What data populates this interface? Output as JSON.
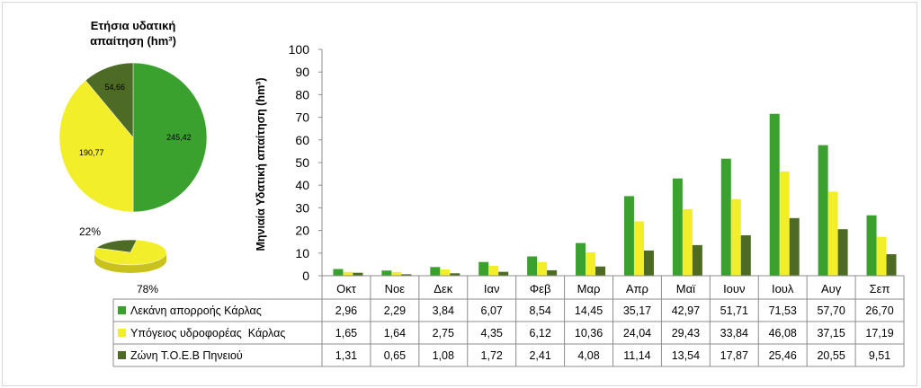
{
  "pie": {
    "title_line1": "Ετήσια υδατική",
    "title_line2": "απαίτηση (hm³)",
    "values": [
      245.42,
      190.77,
      54.66
    ],
    "labels": [
      "245,42",
      "190,77",
      "54,66"
    ],
    "colors": [
      "#3aa02e",
      "#f2ee2a",
      "#4d6b25"
    ]
  },
  "small_pie": {
    "values": [
      78,
      22
    ],
    "labels": [
      "78%",
      "22%"
    ],
    "colors": [
      "#f2ee2a",
      "#4d6b25"
    ]
  },
  "chart_data": {
    "type": "bar",
    "categories": [
      "Οκτ",
      "Νοε",
      "Δεκ",
      "Ιαν",
      "Φεβ",
      "Μαρ",
      "Απρ",
      "Μαϊ",
      "Ιουν",
      "Ιουλ",
      "Αυγ",
      "Σεπ"
    ],
    "ylabel": "Μηνιαία Υδατική απαίτηση (hm³)",
    "ylim": [
      0,
      100
    ],
    "yticks": [
      0,
      10,
      20,
      30,
      40,
      50,
      60,
      70,
      80,
      90,
      100
    ],
    "grid": false,
    "legend": "data-table-left",
    "series": [
      {
        "name": "Λεκάνη απορροής Κάρλας",
        "color": "#3aa02e",
        "values": [
          2.96,
          2.29,
          3.84,
          6.07,
          8.54,
          14.45,
          35.17,
          42.97,
          51.71,
          71.53,
          57.7,
          26.7
        ],
        "labels": [
          "2,96",
          "2,29",
          "3,84",
          "6,07",
          "8,54",
          "14,45",
          "35,17",
          "42,97",
          "51,71",
          "71,53",
          "57,70",
          "26,70"
        ]
      },
      {
        "name": "Υπόγειος υδροφορέας  Κάρλας",
        "color": "#f2ee2a",
        "values": [
          1.65,
          1.64,
          2.75,
          4.35,
          6.12,
          10.36,
          24.04,
          29.43,
          33.84,
          46.08,
          37.15,
          17.19
        ],
        "labels": [
          "1,65",
          "1,64",
          "2,75",
          "4,35",
          "6,12",
          "10,36",
          "24,04",
          "29,43",
          "33,84",
          "46,08",
          "37,15",
          "17,19"
        ]
      },
      {
        "name": "Ζώνη Τ.Ο.Ε.Β Πηνειού",
        "color": "#4d6b25",
        "values": [
          1.31,
          0.65,
          1.08,
          1.72,
          2.41,
          4.08,
          11.14,
          13.54,
          17.87,
          25.46,
          20.55,
          9.51
        ],
        "labels": [
          "1,31",
          "0,65",
          "1,08",
          "1,72",
          "2,41",
          "4,08",
          "11,14",
          "13,54",
          "17,87",
          "25,46",
          "20,55",
          "9,51"
        ]
      }
    ]
  }
}
